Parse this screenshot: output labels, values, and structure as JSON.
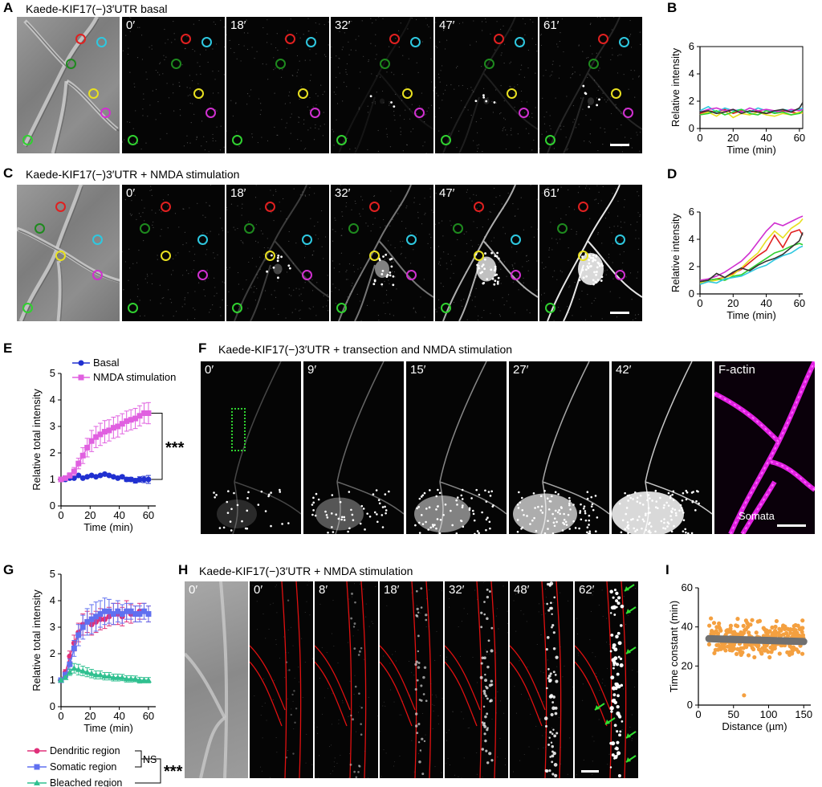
{
  "panels": {
    "A": {
      "letter": "A",
      "title": "Kaede-KIF17(−)3′UTR basal",
      "times": [
        "0′",
        "18′",
        "32′",
        "47′",
        "61′"
      ]
    },
    "B": {
      "letter": "B"
    },
    "C": {
      "letter": "C",
      "title": "Kaede-KIF17(−)3′UTR + NMDA stimulation",
      "times": [
        "0′",
        "18′",
        "32′",
        "47′",
        "61′"
      ]
    },
    "D": {
      "letter": "D"
    },
    "E": {
      "letter": "E",
      "significance": "***"
    },
    "F": {
      "letter": "F",
      "title": "Kaede-KIF17(−)3′UTR + transection and NMDA stimulation",
      "times": [
        "0′",
        "9′",
        "15′",
        "27′",
        "42′"
      ],
      "stain_label": "F-actin",
      "somata_label": "Somata"
    },
    "G": {
      "letter": "G",
      "ns": "NS",
      "significance": "***"
    },
    "H": {
      "letter": "H",
      "title": "Kaede-KIF17(−)3′UTR + NMDA stimulation",
      "times": [
        "0′",
        "0′",
        "8′",
        "18′",
        "32′",
        "48′",
        "62′"
      ]
    },
    "I": {
      "letter": "I"
    }
  },
  "colors": {
    "red": "#e02020",
    "cyan": "#2ec8e0",
    "green_dark": "#1e8a1e",
    "yellow": "#e8e020",
    "magenta": "#d030d0",
    "green": "#30d030",
    "blue": "#2030d0",
    "pink": "#e060e0",
    "rose": "#e0307a",
    "periwinkle": "#6070f0",
    "teal": "#30c090",
    "orange": "#f4a040",
    "grey": "#707070"
  },
  "chart_data": [
    {
      "id": "B",
      "type": "line",
      "xlabel": "Time (min)",
      "ylabel": "Relative intensity",
      "xlim": [
        0,
        62
      ],
      "ylim": [
        0,
        6
      ],
      "xticks": [
        0,
        20,
        40,
        60
      ],
      "yticks": [
        0,
        2,
        4,
        6
      ],
      "x": [
        0,
        5,
        10,
        15,
        20,
        25,
        30,
        35,
        40,
        45,
        50,
        55,
        60,
        62
      ],
      "series": [
        {
          "color": "#e02020",
          "values": [
            1.1,
            1.3,
            1.2,
            1.4,
            1.1,
            1.3,
            1.2,
            1.3,
            1.1,
            1.2,
            1.3,
            1.2,
            1.1,
            1.2
          ]
        },
        {
          "color": "#2ec8e0",
          "values": [
            1.3,
            1.6,
            1.2,
            1.5,
            1.3,
            1.4,
            1.2,
            1.5,
            1.3,
            1.2,
            1.4,
            1.3,
            1.4,
            1.5
          ]
        },
        {
          "color": "#e8e020",
          "values": [
            1.0,
            1.2,
            0.9,
            1.3,
            0.8,
            1.1,
            1.0,
            1.2,
            1.0,
            0.9,
            1.1,
            1.0,
            1.2,
            1.1
          ]
        },
        {
          "color": "#d030d0",
          "values": [
            1.2,
            1.4,
            1.5,
            1.3,
            1.4,
            1.2,
            1.5,
            1.3,
            1.4,
            1.3,
            1.2,
            1.4,
            1.3,
            1.4
          ]
        },
        {
          "color": "#30d030",
          "values": [
            1.0,
            1.1,
            1.3,
            1.0,
            1.2,
            1.4,
            1.1,
            1.0,
            1.3,
            1.1,
            1.2,
            1.0,
            1.1,
            1.3
          ]
        },
        {
          "color": "#333333",
          "values": [
            1.2,
            1.3,
            1.1,
            1.2,
            1.4,
            1.1,
            1.3,
            1.2,
            1.1,
            1.3,
            1.4,
            1.2,
            1.5,
            1.9
          ]
        }
      ]
    },
    {
      "id": "D",
      "type": "line",
      "xlabel": "Time (min)",
      "ylabel": "Relative intensity",
      "xlim": [
        0,
        62
      ],
      "ylim": [
        0,
        6
      ],
      "xticks": [
        0,
        20,
        40,
        60
      ],
      "yticks": [
        0,
        2,
        4,
        6
      ],
      "x": [
        0,
        5,
        10,
        15,
        20,
        25,
        30,
        35,
        40,
        45,
        50,
        55,
        60,
        62
      ],
      "series": [
        {
          "color": "#e02020",
          "values": [
            0.9,
            1.0,
            1.1,
            1.2,
            1.5,
            1.8,
            2.3,
            2.8,
            3.2,
            4.3,
            3.4,
            4.5,
            4.7,
            4.3
          ]
        },
        {
          "color": "#d030d0",
          "values": [
            1.0,
            1.1,
            1.3,
            1.6,
            2.0,
            2.4,
            3.0,
            3.8,
            4.6,
            5.2,
            5.0,
            5.3,
            5.6,
            5.7
          ]
        },
        {
          "color": "#e8e020",
          "values": [
            0.8,
            0.9,
            1.0,
            1.2,
            1.4,
            1.9,
            2.5,
            3.0,
            3.9,
            4.6,
            4.1,
            4.8,
            5.2,
            5.5
          ]
        },
        {
          "color": "#30d030",
          "values": [
            0.9,
            1.0,
            1.1,
            1.0,
            1.3,
            1.4,
            1.8,
            2.2,
            2.6,
            3.0,
            3.2,
            3.5,
            3.7,
            3.6
          ]
        },
        {
          "color": "#2ec8e0",
          "values": [
            0.7,
            0.9,
            0.8,
            1.1,
            1.2,
            1.3,
            1.6,
            1.9,
            2.1,
            2.5,
            2.8,
            3.0,
            3.4,
            3.5
          ]
        },
        {
          "color": "#333333",
          "values": [
            0.9,
            1.0,
            1.5,
            1.2,
            1.6,
            1.9,
            1.7,
            2.1,
            2.4,
            2.6,
            2.9,
            3.4,
            3.9,
            4.5
          ]
        }
      ]
    },
    {
      "id": "E",
      "type": "line",
      "xlabel": "Time (min)",
      "ylabel": "Relative total intensity",
      "xlim": [
        0,
        65
      ],
      "ylim": [
        0,
        5
      ],
      "xticks": [
        0,
        20,
        40,
        60
      ],
      "yticks": [
        0,
        1,
        2,
        3,
        4,
        5
      ],
      "series": [
        {
          "name": "Basal",
          "color": "#2030d0",
          "marker": "circle",
          "x": [
            0,
            3,
            6,
            9,
            12,
            15,
            18,
            21,
            24,
            27,
            30,
            33,
            36,
            39,
            42,
            45,
            48,
            51,
            54,
            57,
            60
          ],
          "values": [
            1.0,
            1.0,
            1.05,
            1.05,
            1.15,
            1.05,
            1.1,
            1.15,
            1.1,
            1.15,
            1.2,
            1.15,
            1.1,
            1.05,
            1.1,
            1.0,
            1.0,
            0.95,
            1.0,
            1.0,
            1.0
          ],
          "err": [
            0,
            0,
            0.02,
            0.03,
            0.04,
            0.03,
            0.03,
            0.04,
            0.03,
            0.04,
            0.05,
            0.04,
            0.04,
            0.05,
            0.06,
            0.08,
            0.08,
            0.09,
            0.1,
            0.12,
            0.15
          ]
        },
        {
          "name": "NMDA stimulation",
          "color": "#e060e0",
          "marker": "square",
          "x": [
            0,
            3,
            6,
            9,
            12,
            15,
            18,
            21,
            24,
            27,
            30,
            33,
            36,
            39,
            42,
            45,
            48,
            51,
            54,
            57,
            60
          ],
          "values": [
            1.0,
            1.05,
            1.15,
            1.3,
            1.6,
            1.9,
            2.2,
            2.45,
            2.6,
            2.7,
            2.8,
            2.85,
            2.95,
            3.0,
            3.1,
            3.2,
            3.25,
            3.3,
            3.4,
            3.5,
            3.5
          ],
          "err": [
            0,
            0.05,
            0.1,
            0.15,
            0.2,
            0.3,
            0.35,
            0.4,
            0.4,
            0.42,
            0.42,
            0.4,
            0.4,
            0.4,
            0.38,
            0.38,
            0.38,
            0.38,
            0.38,
            0.38,
            0.4
          ]
        }
      ]
    },
    {
      "id": "G",
      "type": "line",
      "xlabel": "Time (min)",
      "ylabel": "Relative total intensity",
      "xlim": [
        0,
        65
      ],
      "ylim": [
        0,
        5
      ],
      "xticks": [
        0,
        20,
        40,
        60
      ],
      "yticks": [
        0,
        1,
        2,
        3,
        4,
        5
      ],
      "series": [
        {
          "name": "Dendritic region",
          "color": "#e0307a",
          "marker": "circle",
          "x": [
            0,
            3,
            6,
            9,
            12,
            15,
            18,
            21,
            24,
            27,
            30,
            33,
            36,
            39,
            42,
            45,
            48,
            51,
            54,
            57,
            60
          ],
          "values": [
            1.0,
            1.3,
            1.9,
            2.4,
            2.8,
            3.1,
            3.2,
            3.1,
            3.2,
            3.3,
            3.3,
            3.4,
            3.5,
            3.5,
            3.4,
            3.6,
            3.5,
            3.5,
            3.6,
            3.6,
            3.5
          ],
          "err": [
            0,
            0.1,
            0.2,
            0.3,
            0.35,
            0.4,
            0.4,
            0.4,
            0.4,
            0.4,
            0.35,
            0.35,
            0.4,
            0.4,
            0.35,
            0.4,
            0.35,
            0.3,
            0.3,
            0.3,
            0.3
          ]
        },
        {
          "name": "Somatic region",
          "color": "#6070f0",
          "marker": "square",
          "x": [
            0,
            3,
            6,
            9,
            12,
            15,
            18,
            21,
            24,
            27,
            30,
            33,
            36,
            39,
            42,
            45,
            48,
            51,
            54,
            57,
            60
          ],
          "values": [
            1.0,
            1.2,
            1.6,
            2.2,
            2.7,
            3.0,
            3.2,
            3.3,
            3.4,
            3.5,
            3.6,
            3.6,
            3.5,
            3.6,
            3.5,
            3.6,
            3.6,
            3.5,
            3.5,
            3.6,
            3.5
          ],
          "err": [
            0,
            0.1,
            0.2,
            0.3,
            0.4,
            0.45,
            0.5,
            0.55,
            0.55,
            0.5,
            0.5,
            0.45,
            0.4,
            0.4,
            0.35,
            0.3,
            0.3,
            0.3,
            0.3,
            0.3,
            0.3
          ]
        },
        {
          "name": "Bleached region",
          "color": "#30c090",
          "marker": "triangle",
          "x": [
            0,
            3,
            6,
            9,
            12,
            15,
            18,
            21,
            24,
            27,
            30,
            33,
            36,
            39,
            42,
            45,
            48,
            51,
            54,
            57,
            60
          ],
          "values": [
            1.0,
            1.1,
            1.3,
            1.45,
            1.4,
            1.35,
            1.3,
            1.25,
            1.2,
            1.2,
            1.15,
            1.15,
            1.1,
            1.1,
            1.1,
            1.05,
            1.05,
            1.05,
            1.0,
            1.0,
            1.0
          ],
          "err": [
            0,
            0.05,
            0.12,
            0.18,
            0.2,
            0.18,
            0.17,
            0.16,
            0.15,
            0.15,
            0.14,
            0.14,
            0.13,
            0.13,
            0.12,
            0.12,
            0.12,
            0.11,
            0.11,
            0.1,
            0.1
          ]
        }
      ],
      "legend": [
        "Dendritic region",
        "Somatic region",
        "Bleached region"
      ]
    },
    {
      "id": "I",
      "type": "scatter",
      "xlabel": "Distance (µm)",
      "ylabel": "Time constant (min)",
      "xlim": [
        0,
        160
      ],
      "ylim": [
        0,
        60
      ],
      "xticks": [
        0,
        50,
        100,
        150
      ],
      "yticks": [
        0,
        20,
        40,
        60
      ],
      "point_color": "#f4a040",
      "point_count": 320,
      "x_range": [
        15,
        150
      ],
      "y_center": 34,
      "y_spread": 6,
      "outlier": {
        "x": 65,
        "y": 5
      },
      "fit": {
        "x": [
          15,
          150
        ],
        "y": [
          34,
          32.5
        ],
        "color": "#707070"
      }
    }
  ]
}
